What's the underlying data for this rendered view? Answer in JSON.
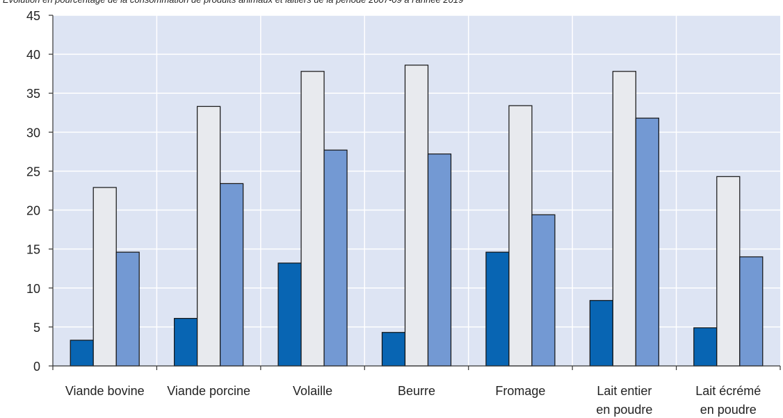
{
  "chart_data": {
    "type": "bar",
    "title": "Évolution en pourcentage de la consommation de produits animaux et laitiers de la période 2007-09 à l'année 2019",
    "categories": [
      [
        "Viande bovine"
      ],
      [
        "Viande porcine"
      ],
      [
        "Volaille"
      ],
      [
        "Beurre"
      ],
      [
        "Fromage"
      ],
      [
        "Lait entier",
        "en poudre"
      ],
      [
        "Lait écrémé",
        "en poudre"
      ]
    ],
    "series": [
      {
        "values": [
          3.3,
          6.1,
          13.2,
          4.3,
          14.6,
          8.4,
          4.9
        ],
        "color": "#0865b3"
      },
      {
        "values": [
          22.9,
          33.3,
          37.8,
          38.6,
          33.4,
          37.8,
          24.3
        ],
        "color": "#e8eaee"
      },
      {
        "values": [
          14.6,
          23.4,
          27.7,
          27.2,
          19.4,
          31.8,
          14.0
        ],
        "color": "#7399d3"
      }
    ],
    "ylim": [
      0,
      45
    ],
    "yticks": [
      0,
      5,
      10,
      15,
      20,
      25,
      30,
      35,
      40,
      45
    ],
    "grid": true,
    "plot_background": "#dde4f3"
  }
}
